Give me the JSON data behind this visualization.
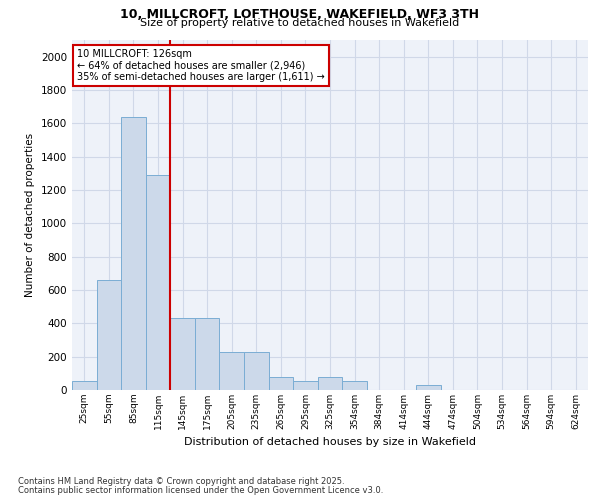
{
  "title_line1": "10, MILLCROFT, LOFTHOUSE, WAKEFIELD, WF3 3TH",
  "title_line2": "Size of property relative to detached houses in Wakefield",
  "xlabel": "Distribution of detached houses by size in Wakefield",
  "ylabel": "Number of detached properties",
  "bar_color": "#ccd9ea",
  "bar_edge_color": "#7aadd4",
  "vline_color": "#cc0000",
  "annotation_text": "10 MILLCROFT: 126sqm\n← 64% of detached houses are smaller (2,946)\n35% of semi-detached houses are larger (1,611) →",
  "annotation_box_color": "#cc0000",
  "annotation_box_fill": "white",
  "categories": [
    "25sqm",
    "55sqm",
    "85sqm",
    "115sqm",
    "145sqm",
    "175sqm",
    "205sqm",
    "235sqm",
    "265sqm",
    "295sqm",
    "325sqm",
    "354sqm",
    "384sqm",
    "414sqm",
    "444sqm",
    "474sqm",
    "504sqm",
    "534sqm",
    "564sqm",
    "594sqm",
    "624sqm"
  ],
  "values": [
    55,
    660,
    1640,
    1290,
    430,
    430,
    230,
    230,
    80,
    55,
    80,
    55,
    0,
    0,
    30,
    0,
    0,
    0,
    0,
    0,
    0
  ],
  "vline_position": 3.5,
  "ylim_max": 2100,
  "yticks": [
    0,
    200,
    400,
    600,
    800,
    1000,
    1200,
    1400,
    1600,
    1800,
    2000
  ],
  "grid_color": "#d0d8e8",
  "bg_color": "#eef2f9",
  "footnote_line1": "Contains HM Land Registry data © Crown copyright and database right 2025.",
  "footnote_line2": "Contains public sector information licensed under the Open Government Licence v3.0."
}
